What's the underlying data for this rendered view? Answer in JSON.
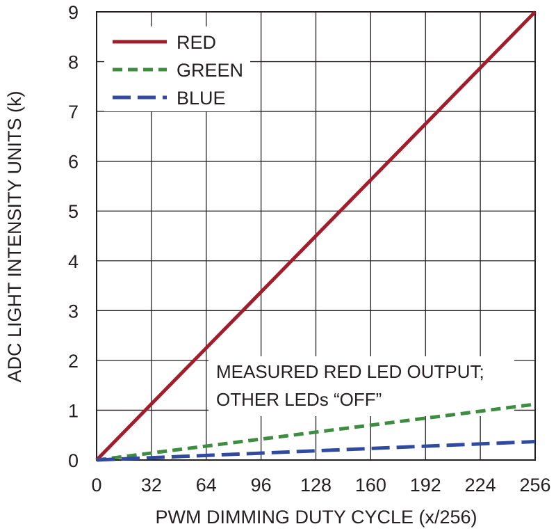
{
  "chart_data": {
    "type": "line",
    "xlabel": "PWM DIMMING DUTY CYCLE (x/256)",
    "ylabel": "ADC LIGHT INTENSITY UNITS (k)",
    "xlim": [
      0,
      256
    ],
    "ylim": [
      0,
      9
    ],
    "x_ticks": [
      "0",
      "32",
      "64",
      "96",
      "128",
      "160",
      "192",
      "224",
      "256"
    ],
    "y_ticks": [
      "0",
      "1",
      "2",
      "3",
      "4",
      "5",
      "6",
      "7",
      "8",
      "9"
    ],
    "grid": true,
    "legend_position": "top-left",
    "series": [
      {
        "name": "RED",
        "color": "#a11d2b",
        "style": "solid",
        "x": [
          0,
          256
        ],
        "y": [
          0,
          9.0
        ]
      },
      {
        "name": "GREEN",
        "color": "#3d8c40",
        "style": "dashed",
        "x": [
          0,
          256
        ],
        "y": [
          0,
          1.12
        ]
      },
      {
        "name": "BLUE",
        "color": "#2f4aa0",
        "style": "long-dashed",
        "x": [
          0,
          256
        ],
        "y": [
          0,
          0.37
        ]
      }
    ],
    "annotation": [
      "MEASURED RED LED OUTPUT;",
      "OTHER LEDs “OFF”"
    ]
  }
}
